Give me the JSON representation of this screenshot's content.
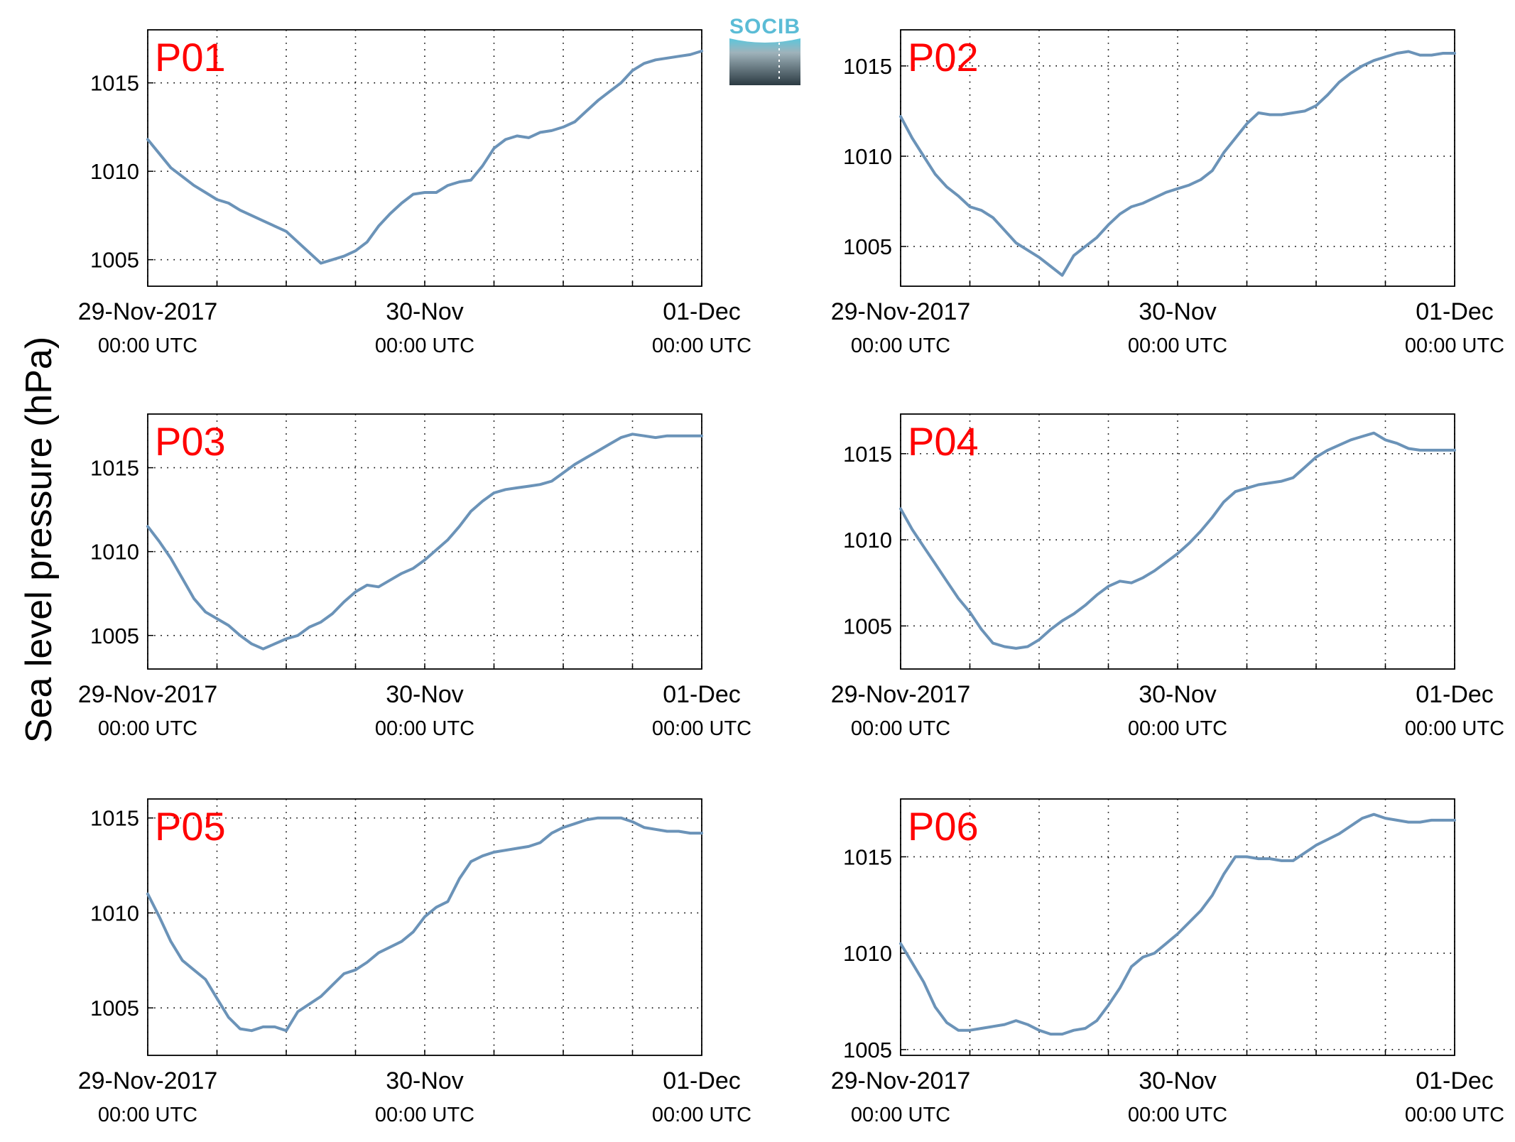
{
  "figure": {
    "ylabel": "Sea level pressure (hPa)",
    "logo_text": "SOCIB",
    "colors": {
      "line": "#6b93b8",
      "panel_label": "#ff0000",
      "axis": "#000000"
    }
  },
  "chart_data": [
    {
      "type": "line",
      "title": "P01",
      "ylim": [
        1003.5,
        1018
      ],
      "yticks": [
        1005,
        1010,
        1015
      ],
      "x_hours": [
        0,
        1,
        2,
        3,
        4,
        5,
        6,
        7,
        8,
        9,
        10,
        11,
        12,
        13,
        14,
        15,
        16,
        17,
        18,
        19,
        20,
        21,
        22,
        23,
        24,
        25,
        26,
        27,
        28,
        29,
        30,
        31,
        32,
        33,
        34,
        35,
        36,
        37,
        38,
        39,
        40,
        41,
        42,
        43,
        44,
        45,
        46,
        47,
        48
      ],
      "values": [
        1011.8,
        1011.0,
        1010.2,
        1009.7,
        1009.2,
        1008.8,
        1008.4,
        1008.2,
        1007.8,
        1007.5,
        1007.2,
        1006.9,
        1006.6,
        1006.0,
        1005.4,
        1004.8,
        1005.0,
        1005.2,
        1005.5,
        1006.0,
        1006.9,
        1007.6,
        1008.2,
        1008.7,
        1008.8,
        1008.8,
        1009.2,
        1009.4,
        1009.5,
        1010.3,
        1011.3,
        1011.8,
        1012.0,
        1011.9,
        1012.2,
        1012.3,
        1012.5,
        1012.8,
        1013.4,
        1014.0,
        1014.5,
        1015.0,
        1015.7,
        1016.1,
        1016.3,
        1016.4,
        1016.5,
        1016.6,
        1016.8
      ],
      "x_tick_hours": [
        0,
        24,
        48
      ],
      "x_minor_hours": [
        6,
        12,
        18,
        30,
        36,
        42
      ],
      "x_tick_labels": [
        [
          "29-Nov-2017",
          "00:00 UTC"
        ],
        [
          "30-Nov",
          "00:00 UTC"
        ],
        [
          "01-Dec",
          "00:00 UTC"
        ]
      ]
    },
    {
      "type": "line",
      "title": "P02",
      "ylim": [
        1002.8,
        1017
      ],
      "yticks": [
        1005,
        1010,
        1015
      ],
      "x_hours": [
        0,
        1,
        2,
        3,
        4,
        5,
        6,
        7,
        8,
        9,
        10,
        11,
        12,
        13,
        14,
        15,
        16,
        17,
        18,
        19,
        20,
        21,
        22,
        23,
        24,
        25,
        26,
        27,
        28,
        29,
        30,
        31,
        32,
        33,
        34,
        35,
        36,
        37,
        38,
        39,
        40,
        41,
        42,
        43,
        44,
        45,
        46,
        47,
        48
      ],
      "values": [
        1012.2,
        1011.0,
        1010.0,
        1009.0,
        1008.3,
        1007.8,
        1007.2,
        1007.0,
        1006.6,
        1005.9,
        1005.2,
        1004.8,
        1004.4,
        1003.9,
        1003.4,
        1004.5,
        1005.0,
        1005.5,
        1006.2,
        1006.8,
        1007.2,
        1007.4,
        1007.7,
        1008.0,
        1008.2,
        1008.4,
        1008.7,
        1009.2,
        1010.2,
        1011.0,
        1011.8,
        1012.4,
        1012.3,
        1012.3,
        1012.4,
        1012.5,
        1012.8,
        1013.4,
        1014.1,
        1014.6,
        1015.0,
        1015.3,
        1015.5,
        1015.7,
        1015.8,
        1015.6,
        1015.6,
        1015.7,
        1015.7
      ],
      "x_tick_hours": [
        0,
        24,
        48
      ],
      "x_minor_hours": [
        6,
        12,
        18,
        30,
        36,
        42
      ],
      "x_tick_labels": [
        [
          "29-Nov-2017",
          "00:00 UTC"
        ],
        [
          "30-Nov",
          "00:00 UTC"
        ],
        [
          "01-Dec",
          "00:00 UTC"
        ]
      ]
    },
    {
      "type": "line",
      "title": "P03",
      "ylim": [
        1003,
        1018.2
      ],
      "yticks": [
        1005,
        1010,
        1015
      ],
      "x_hours": [
        0,
        1,
        2,
        3,
        4,
        5,
        6,
        7,
        8,
        9,
        10,
        11,
        12,
        13,
        14,
        15,
        16,
        17,
        18,
        19,
        20,
        21,
        22,
        23,
        24,
        25,
        26,
        27,
        28,
        29,
        30,
        31,
        32,
        33,
        34,
        35,
        36,
        37,
        38,
        39,
        40,
        41,
        42,
        43,
        44,
        45,
        46,
        47,
        48
      ],
      "values": [
        1011.5,
        1010.6,
        1009.6,
        1008.4,
        1007.2,
        1006.4,
        1006.0,
        1005.6,
        1005.0,
        1004.5,
        1004.2,
        1004.5,
        1004.8,
        1005.0,
        1005.5,
        1005.8,
        1006.3,
        1007.0,
        1007.6,
        1008.0,
        1007.9,
        1008.3,
        1008.7,
        1009.0,
        1009.5,
        1010.1,
        1010.7,
        1011.5,
        1012.4,
        1013.0,
        1013.5,
        1013.7,
        1013.8,
        1013.9,
        1014.0,
        1014.2,
        1014.7,
        1015.2,
        1015.6,
        1016.0,
        1016.4,
        1016.8,
        1017.0,
        1016.9,
        1016.8,
        1016.9,
        1016.9,
        1016.9,
        1016.9
      ],
      "x_tick_hours": [
        0,
        24,
        48
      ],
      "x_minor_hours": [
        6,
        12,
        18,
        30,
        36,
        42
      ],
      "x_tick_labels": [
        [
          "29-Nov-2017",
          "00:00 UTC"
        ],
        [
          "30-Nov",
          "00:00 UTC"
        ],
        [
          "01-Dec",
          "00:00 UTC"
        ]
      ]
    },
    {
      "type": "line",
      "title": "P04",
      "ylim": [
        1002.5,
        1017.3
      ],
      "yticks": [
        1005,
        1010,
        1015
      ],
      "x_hours": [
        0,
        1,
        2,
        3,
        4,
        5,
        6,
        7,
        8,
        9,
        10,
        11,
        12,
        13,
        14,
        15,
        16,
        17,
        18,
        19,
        20,
        21,
        22,
        23,
        24,
        25,
        26,
        27,
        28,
        29,
        30,
        31,
        32,
        33,
        34,
        35,
        36,
        37,
        38,
        39,
        40,
        41,
        42,
        43,
        44,
        45,
        46,
        47,
        48
      ],
      "values": [
        1011.8,
        1010.6,
        1009.6,
        1008.6,
        1007.6,
        1006.6,
        1005.8,
        1004.8,
        1004.0,
        1003.8,
        1003.7,
        1003.8,
        1004.2,
        1004.8,
        1005.3,
        1005.7,
        1006.2,
        1006.8,
        1007.3,
        1007.6,
        1007.5,
        1007.8,
        1008.2,
        1008.7,
        1009.2,
        1009.8,
        1010.5,
        1011.3,
        1012.2,
        1012.8,
        1013.0,
        1013.2,
        1013.3,
        1013.4,
        1013.6,
        1014.2,
        1014.8,
        1015.2,
        1015.5,
        1015.8,
        1016.0,
        1016.2,
        1015.8,
        1015.6,
        1015.3,
        1015.2,
        1015.2,
        1015.2,
        1015.2
      ],
      "x_tick_hours": [
        0,
        24,
        48
      ],
      "x_minor_hours": [
        6,
        12,
        18,
        30,
        36,
        42
      ],
      "x_tick_labels": [
        [
          "29-Nov-2017",
          "00:00 UTC"
        ],
        [
          "30-Nov",
          "00:00 UTC"
        ],
        [
          "01-Dec",
          "00:00 UTC"
        ]
      ]
    },
    {
      "type": "line",
      "title": "P05",
      "ylim": [
        1002.5,
        1016
      ],
      "yticks": [
        1005,
        1010,
        1015
      ],
      "x_hours": [
        0,
        1,
        2,
        3,
        4,
        5,
        6,
        7,
        8,
        9,
        10,
        11,
        12,
        13,
        14,
        15,
        16,
        17,
        18,
        19,
        20,
        21,
        22,
        23,
        24,
        25,
        26,
        27,
        28,
        29,
        30,
        31,
        32,
        33,
        34,
        35,
        36,
        37,
        38,
        39,
        40,
        41,
        42,
        43,
        44,
        45,
        46,
        47,
        48
      ],
      "values": [
        1011.0,
        1009.8,
        1008.5,
        1007.5,
        1007.0,
        1006.5,
        1005.5,
        1004.5,
        1003.9,
        1003.8,
        1004.0,
        1004.0,
        1003.8,
        1004.8,
        1005.2,
        1005.6,
        1006.2,
        1006.8,
        1007.0,
        1007.4,
        1007.9,
        1008.2,
        1008.5,
        1009.0,
        1009.8,
        1010.3,
        1010.6,
        1011.8,
        1012.7,
        1013.0,
        1013.2,
        1013.3,
        1013.4,
        1013.5,
        1013.7,
        1014.2,
        1014.5,
        1014.7,
        1014.9,
        1015.0,
        1015.0,
        1015.0,
        1014.8,
        1014.5,
        1014.4,
        1014.3,
        1014.3,
        1014.2,
        1014.2
      ],
      "x_tick_hours": [
        0,
        24,
        48
      ],
      "x_minor_hours": [
        6,
        12,
        18,
        30,
        36,
        42
      ],
      "x_tick_labels": [
        [
          "29-Nov-2017",
          "00:00 UTC"
        ],
        [
          "30-Nov",
          "00:00 UTC"
        ],
        [
          "01-Dec",
          "00:00 UTC"
        ]
      ]
    },
    {
      "type": "line",
      "title": "P06",
      "ylim": [
        1004.7,
        1018
      ],
      "yticks": [
        1005,
        1010,
        1015
      ],
      "x_hours": [
        0,
        1,
        2,
        3,
        4,
        5,
        6,
        7,
        8,
        9,
        10,
        11,
        12,
        13,
        14,
        15,
        16,
        17,
        18,
        19,
        20,
        21,
        22,
        23,
        24,
        25,
        26,
        27,
        28,
        29,
        30,
        31,
        32,
        33,
        34,
        35,
        36,
        37,
        38,
        39,
        40,
        41,
        42,
        43,
        44,
        45,
        46,
        47,
        48
      ],
      "values": [
        1010.5,
        1009.5,
        1008.5,
        1007.2,
        1006.4,
        1006.0,
        1006.0,
        1006.1,
        1006.2,
        1006.3,
        1006.5,
        1006.3,
        1006.0,
        1005.8,
        1005.8,
        1006.0,
        1006.1,
        1006.5,
        1007.3,
        1008.2,
        1009.3,
        1009.8,
        1010.0,
        1010.5,
        1011.0,
        1011.6,
        1012.2,
        1013.0,
        1014.1,
        1015.0,
        1015.0,
        1014.9,
        1014.9,
        1014.8,
        1014.8,
        1015.2,
        1015.6,
        1015.9,
        1016.2,
        1016.6,
        1017.0,
        1017.2,
        1017.0,
        1016.9,
        1016.8,
        1016.8,
        1016.9,
        1016.9,
        1016.9
      ],
      "x_tick_hours": [
        0,
        24,
        48
      ],
      "x_minor_hours": [
        6,
        12,
        18,
        30,
        36,
        42
      ],
      "x_tick_labels": [
        [
          "29-Nov-2017",
          "00:00 UTC"
        ],
        [
          "30-Nov",
          "00:00 UTC"
        ],
        [
          "01-Dec",
          "00:00 UTC"
        ]
      ]
    }
  ]
}
